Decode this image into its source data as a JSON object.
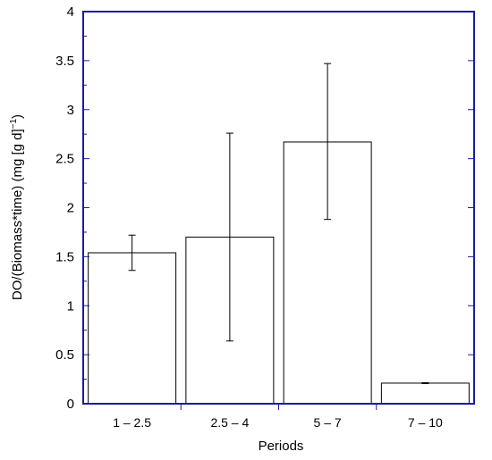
{
  "chart_data": {
    "type": "bar",
    "xlabel": "Periods",
    "ylabel": "DO/(Biomass*time) (mg [g d]",
    "ylabel_sup": "−1",
    "ylabel_close": ")",
    "categories": [
      "1 – 2.5",
      "2.5 – 4",
      "5 – 7",
      "7 – 10"
    ],
    "values": [
      1.54,
      1.7,
      2.67,
      0.21
    ],
    "error_low": [
      1.36,
      0.64,
      1.88,
      0.205
    ],
    "error_high": [
      1.72,
      2.76,
      3.47,
      0.215
    ],
    "ylim": [
      0,
      4
    ],
    "yticks": [
      "0",
      "0.5",
      "1",
      "1.5",
      "2",
      "2.5",
      "3",
      "3.5",
      "4"
    ],
    "grid": false,
    "colors": {
      "frame": "#1a1aa8",
      "bar_fill": "#ffffff",
      "bar_stroke": "#000000"
    }
  }
}
